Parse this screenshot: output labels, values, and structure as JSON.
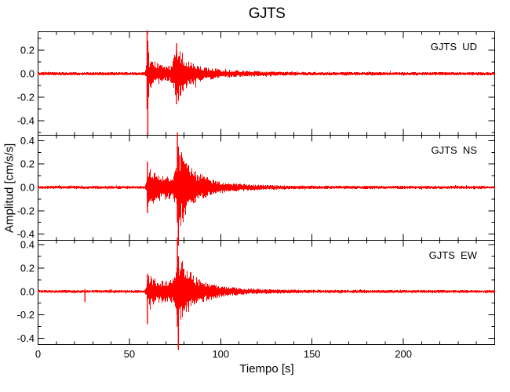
{
  "title": "GJTS",
  "axes": {
    "xlabel": "Tiempo [s]",
    "ylabel": "Amplitud [cm/s/s]"
  },
  "colors": {
    "trace": "#ff0000",
    "axis": "#000000",
    "background": "#ffffff",
    "text": "#000000"
  },
  "chart_data": {
    "type": "line",
    "title": "GJTS",
    "xlabel": "Tiempo [s]",
    "ylabel": "Amplitud [cm/s/s]",
    "x_range": [
      0,
      250
    ],
    "x_major_tick_values": [
      0,
      50,
      100,
      150,
      200
    ],
    "x_tick_labels": [
      "0",
      "50",
      "100",
      "150",
      "200"
    ],
    "x_minor_step": 10,
    "grid": false,
    "legend_position": "none",
    "trace_color": "#ff0000",
    "seed": 1234,
    "panels": [
      {
        "id": "ud",
        "label": "GJTS  UD",
        "y_range": [
          -0.52,
          0.36
        ],
        "y_major_tick_values": [
          0.2,
          0.0,
          -0.2,
          -0.4
        ],
        "y_tick_labels": [
          "0.2",
          "0.0",
          "-0.2",
          "-0.4"
        ],
        "y_minor_step": 0.1,
        "p_arrival_s": 60,
        "s_arrival_s": 76,
        "peak_amplitude": {
          "up": 0.37,
          "down": -0.52
        },
        "envelope": [
          [
            0,
            0.013
          ],
          [
            57,
            0.013
          ],
          [
            58.5,
            0.016
          ],
          [
            59.5,
            0.05
          ],
          [
            60,
            0.1
          ],
          [
            61.5,
            0.13
          ],
          [
            63,
            0.1
          ],
          [
            66,
            0.08
          ],
          [
            70,
            0.065
          ],
          [
            73,
            0.07
          ],
          [
            75,
            0.17
          ],
          [
            76.5,
            0.22
          ],
          [
            78.5,
            0.19
          ],
          [
            80.5,
            0.14
          ],
          [
            83,
            0.1
          ],
          [
            86,
            0.08
          ],
          [
            90,
            0.06
          ],
          [
            95,
            0.045
          ],
          [
            102,
            0.032
          ],
          [
            112,
            0.024
          ],
          [
            125,
            0.018
          ],
          [
            145,
            0.014
          ],
          [
            250,
            0.013
          ]
        ],
        "spikes": [
          [
            59.7,
            0.37,
            -0.3
          ],
          [
            60.1,
            0.28,
            -0.52
          ],
          [
            60.5,
            0.18,
            -0.2
          ],
          [
            75.8,
            0.26,
            -0.26
          ]
        ]
      },
      {
        "id": "ns",
        "label": "GJTS  NS",
        "y_range": [
          -0.45,
          0.45
        ],
        "y_major_tick_values": [
          0.4,
          0.2,
          0.0,
          -0.2,
          -0.4
        ],
        "y_tick_labels": [
          "0.4",
          "0.2",
          "0.0",
          "-0.2",
          "-0.4"
        ],
        "y_minor_step": 0.1,
        "p_arrival_s": 60,
        "s_arrival_s": 76,
        "peak_amplitude": {
          "up": 0.47,
          "down": -0.5
        },
        "envelope": [
          [
            0,
            0.012
          ],
          [
            57,
            0.012
          ],
          [
            58.5,
            0.016
          ],
          [
            59.5,
            0.06
          ],
          [
            60,
            0.15
          ],
          [
            61,
            0.17
          ],
          [
            62.5,
            0.13
          ],
          [
            65,
            0.11
          ],
          [
            69,
            0.095
          ],
          [
            72,
            0.1
          ],
          [
            74.5,
            0.12
          ],
          [
            75.8,
            0.2
          ],
          [
            76.5,
            0.3
          ],
          [
            78,
            0.31
          ],
          [
            80,
            0.26
          ],
          [
            82,
            0.2
          ],
          [
            84.5,
            0.155
          ],
          [
            87,
            0.125
          ],
          [
            90,
            0.1
          ],
          [
            94,
            0.07
          ],
          [
            99,
            0.05
          ],
          [
            105,
            0.037
          ],
          [
            112,
            0.028
          ],
          [
            122,
            0.021
          ],
          [
            135,
            0.016
          ],
          [
            155,
            0.013
          ],
          [
            250,
            0.012
          ]
        ],
        "spikes": [
          [
            59.9,
            0.22,
            -0.22
          ],
          [
            76.3,
            0.47,
            -0.3
          ],
          [
            76.8,
            0.35,
            -0.5
          ]
        ]
      },
      {
        "id": "ew",
        "label": "GJTS  EW",
        "y_range": [
          -0.45,
          0.44
        ],
        "y_major_tick_values": [
          0.4,
          0.2,
          0.0,
          -0.2,
          -0.4
        ],
        "y_tick_labels": [
          "0.4",
          "0.2",
          "0.0",
          "-0.2",
          "-0.4"
        ],
        "y_minor_step": 0.1,
        "p_arrival_s": 60,
        "s_arrival_s": 76,
        "peak_amplitude": {
          "up": 0.46,
          "down": -0.5
        },
        "envelope": [
          [
            0,
            0.012
          ],
          [
            57,
            0.012
          ],
          [
            58.5,
            0.015
          ],
          [
            59.5,
            0.05
          ],
          [
            60,
            0.12
          ],
          [
            61,
            0.14
          ],
          [
            62.5,
            0.11
          ],
          [
            65,
            0.095
          ],
          [
            69,
            0.085
          ],
          [
            72,
            0.09
          ],
          [
            74.5,
            0.11
          ],
          [
            75.8,
            0.17
          ],
          [
            76.5,
            0.25
          ],
          [
            78,
            0.26
          ],
          [
            80,
            0.22
          ],
          [
            82,
            0.17
          ],
          [
            84.5,
            0.14
          ],
          [
            87,
            0.11
          ],
          [
            90,
            0.09
          ],
          [
            94,
            0.065
          ],
          [
            99,
            0.048
          ],
          [
            105,
            0.035
          ],
          [
            112,
            0.026
          ],
          [
            122,
            0.02
          ],
          [
            135,
            0.015
          ],
          [
            155,
            0.013
          ],
          [
            250,
            0.012
          ]
        ],
        "spikes": [
          [
            25.7,
            0.02,
            -0.09
          ],
          [
            59.9,
            0.15,
            -0.28
          ],
          [
            76.3,
            0.46,
            -0.3
          ],
          [
            76.8,
            0.3,
            -0.5
          ]
        ]
      }
    ]
  }
}
